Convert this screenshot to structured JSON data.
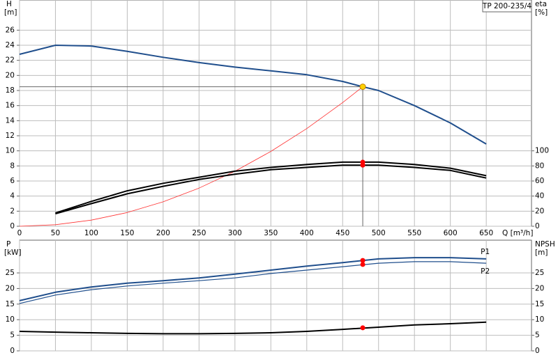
{
  "chart_data": [
    {
      "type": "line",
      "title": "TP 200-235/4",
      "x_label": "Q [m³/h]",
      "y_label": "H",
      "y_unit": "[m]",
      "y2_label": "eta",
      "y2_unit": "[%]",
      "xlim": [
        0,
        713
      ],
      "xticks": [
        0,
        50,
        100,
        150,
        200,
        250,
        300,
        350,
        400,
        450,
        500,
        550,
        600,
        650
      ],
      "xtick_labels": true,
      "ylim": [
        0,
        30
      ],
      "yticks": [
        0,
        2,
        4,
        6,
        8,
        10,
        12,
        14,
        16,
        18,
        20,
        22,
        24,
        26
      ],
      "y2lim": [
        0,
        300
      ],
      "y2ticks": [
        0,
        20,
        40,
        60,
        80,
        100
      ],
      "grid": true,
      "duty_point": {
        "x": 478,
        "y": 18.5,
        "color": "#ffd200"
      },
      "series": [
        {
          "color": "#1f4e8c",
          "width": 2,
          "axis": "y",
          "x": [
            0,
            50,
            100,
            150,
            200,
            250,
            300,
            350,
            400,
            450,
            478,
            500,
            550,
            600,
            650
          ],
          "values": [
            22.8,
            24.0,
            23.9,
            23.2,
            22.4,
            21.7,
            21.1,
            20.6,
            20.1,
            19.2,
            18.5,
            18.0,
            16.0,
            13.7,
            10.9
          ]
        },
        {
          "color": "#ff3030",
          "width": 0.8,
          "axis": "y",
          "x": [
            0,
            50,
            100,
            150,
            200,
            250,
            300,
            350,
            400,
            450,
            478
          ],
          "values": [
            0,
            0.2,
            0.81,
            1.82,
            3.24,
            5.06,
            7.29,
            9.92,
            12.95,
            16.4,
            18.5
          ]
        },
        {
          "color": "#000000",
          "width": 2,
          "axis": "y2",
          "x": [
            50,
            100,
            150,
            200,
            250,
            300,
            350,
            400,
            450,
            500,
            550,
            600,
            650
          ],
          "values": [
            17.5,
            33,
            47,
            57,
            65,
            73,
            78,
            82,
            85,
            85,
            82,
            77,
            67
          ],
          "marker": {
            "x": 478,
            "y": 85,
            "color": "#ff0000"
          }
        },
        {
          "color": "#000000",
          "width": 2,
          "axis": "y2",
          "x": [
            50,
            100,
            150,
            200,
            250,
            300,
            350,
            400,
            450,
            500,
            550,
            600,
            650
          ],
          "values": [
            16.6,
            30,
            43,
            53,
            62,
            69,
            75,
            78,
            81,
            81,
            78,
            74,
            64
          ],
          "marker": {
            "x": 478,
            "y": 81,
            "color": "#ff0000"
          }
        }
      ]
    },
    {
      "type": "line",
      "y_label": "P",
      "y_unit": "[kW]",
      "y2_label": "NPSH",
      "y2_unit": "[m]",
      "xlim": [
        0,
        713
      ],
      "xticks": [
        0,
        50,
        100,
        150,
        200,
        250,
        300,
        350,
        400,
        450,
        500,
        550,
        600,
        650
      ],
      "xtick_labels": false,
      "ylim": [
        0,
        35.5
      ],
      "yticks": [
        0,
        5,
        10,
        15,
        20,
        25
      ],
      "y2lim": [
        0,
        35.5
      ],
      "y2ticks": [
        0,
        5,
        10,
        15,
        20,
        25
      ],
      "grid": true,
      "series": [
        {
          "name": "P1",
          "color": "#1f4e8c",
          "width": 2,
          "axis": "y",
          "x": [
            0,
            50,
            100,
            150,
            200,
            250,
            300,
            350,
            400,
            450,
            500,
            550,
            600,
            650
          ],
          "values": [
            16.1,
            18.8,
            20.5,
            21.7,
            22.5,
            23.4,
            24.6,
            25.9,
            27.2,
            28.3,
            29.5,
            29.9,
            29.9,
            29.5
          ],
          "marker": {
            "x": 478,
            "y": 29.0,
            "color": "#ff0000"
          }
        },
        {
          "name": "P2",
          "color": "#1f4e8c",
          "width": 1.2,
          "axis": "y",
          "x": [
            0,
            50,
            100,
            150,
            200,
            250,
            300,
            350,
            400,
            450,
            500,
            550,
            600,
            650
          ],
          "values": [
            15.2,
            17.9,
            19.6,
            20.8,
            21.7,
            22.5,
            23.4,
            24.8,
            25.9,
            27.0,
            28.1,
            28.6,
            28.6,
            28.1
          ],
          "marker": {
            "x": 478,
            "y": 27.7,
            "color": "#ff0000"
          }
        },
        {
          "color": "#000000",
          "width": 2,
          "axis": "y2",
          "x": [
            0,
            50,
            100,
            150,
            200,
            250,
            300,
            350,
            400,
            450,
            500,
            550,
            600,
            650
          ],
          "values": [
            6.25,
            6.0,
            5.8,
            5.6,
            5.5,
            5.5,
            5.6,
            5.8,
            6.25,
            6.9,
            7.6,
            8.3,
            8.7,
            9.2
          ],
          "marker": {
            "x": 478,
            "y": 7.4,
            "color": "#ff0000"
          }
        }
      ]
    }
  ]
}
